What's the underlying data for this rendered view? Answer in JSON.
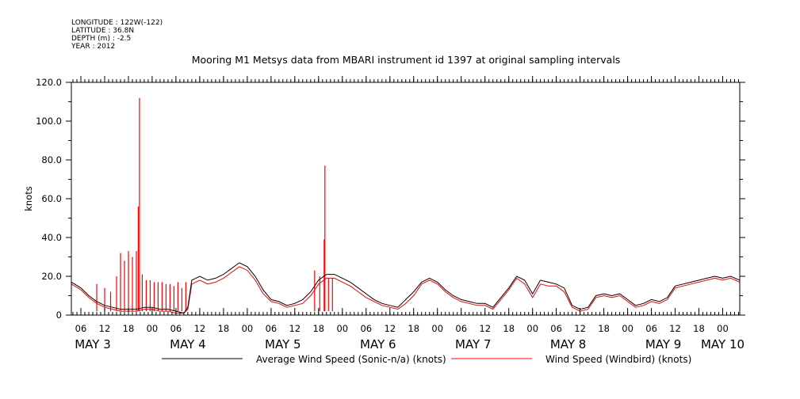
{
  "header": {
    "longitude": "LONGITUDE : 122W(-122)",
    "latitude": "LATITUDE : 36.8N",
    "depth": "DEPTH (m) : -2.5",
    "year": "YEAR : 2012"
  },
  "chart_data": {
    "type": "line",
    "title": "Mooring M1 Metsys data from MBARI instrument id 1397 at original sampling intervals",
    "xlabel": "",
    "ylabel": "knots",
    "ylim": [
      0,
      120
    ],
    "y_ticks": [
      0,
      20,
      40,
      60,
      80,
      100,
      120
    ],
    "y_tick_labels": [
      "0",
      "20.0",
      "40.0",
      "60.0",
      "80.0",
      "100.0",
      "120.0"
    ],
    "x_unit": "hours since 2012-05-03 00:00",
    "xlim": [
      3.6,
      172.3
    ],
    "x_ticks": [
      {
        "hour": 6,
        "label": "06"
      },
      {
        "hour": 12,
        "label": "12"
      },
      {
        "hour": 18,
        "label": "18"
      },
      {
        "hour": 24,
        "label": "00"
      },
      {
        "hour": 30,
        "label": "06"
      },
      {
        "hour": 36,
        "label": "12"
      },
      {
        "hour": 42,
        "label": "18"
      },
      {
        "hour": 48,
        "label": "00"
      },
      {
        "hour": 54,
        "label": "06"
      },
      {
        "hour": 60,
        "label": "12"
      },
      {
        "hour": 66,
        "label": "18"
      },
      {
        "hour": 72,
        "label": "00"
      },
      {
        "hour": 78,
        "label": "06"
      },
      {
        "hour": 84,
        "label": "12"
      },
      {
        "hour": 90,
        "label": "18"
      },
      {
        "hour": 96,
        "label": "00"
      },
      {
        "hour": 102,
        "label": "06"
      },
      {
        "hour": 108,
        "label": "12"
      },
      {
        "hour": 114,
        "label": "18"
      },
      {
        "hour": 120,
        "label": "00"
      },
      {
        "hour": 126,
        "label": "06"
      },
      {
        "hour": 132,
        "label": "12"
      },
      {
        "hour": 138,
        "label": "18"
      },
      {
        "hour": 144,
        "label": "00"
      },
      {
        "hour": 150,
        "label": "06"
      },
      {
        "hour": 156,
        "label": "12"
      },
      {
        "hour": 162,
        "label": "18"
      },
      {
        "hour": 168,
        "label": "00"
      }
    ],
    "day_labels": [
      {
        "hour": 9,
        "label": "MAY  3"
      },
      {
        "hour": 33,
        "label": "MAY  4"
      },
      {
        "hour": 57,
        "label": "MAY  5"
      },
      {
        "hour": 81,
        "label": "MAY  6"
      },
      {
        "hour": 105,
        "label": "MAY  7"
      },
      {
        "hour": 129,
        "label": "MAY  8"
      },
      {
        "hour": 153,
        "label": "MAY  9"
      },
      {
        "hour": 168,
        "label": "MAY 10"
      }
    ],
    "series": [
      {
        "name": "Average Wind Speed (Sonic-n/a) (knots)",
        "color": "#000000",
        "x": [
          3.6,
          6,
          8,
          10,
          12,
          14,
          16,
          18,
          20,
          22,
          24,
          26,
          28,
          30,
          32,
          33,
          34,
          36,
          38,
          40,
          42,
          44,
          46,
          48,
          50,
          52,
          54,
          56,
          58,
          60,
          62,
          64,
          66,
          68,
          70,
          72,
          74,
          76,
          78,
          80,
          82,
          84,
          86,
          88,
          90,
          92,
          94,
          96,
          98,
          100,
          102,
          104,
          106,
          108,
          110,
          112,
          114,
          116,
          118,
          120,
          122,
          124,
          126,
          128,
          130,
          132,
          134,
          136,
          138,
          140,
          142,
          144,
          146,
          148,
          150,
          152,
          154,
          156,
          158,
          160,
          162,
          164,
          166,
          168,
          170,
          172.3
        ],
        "y": [
          17,
          14,
          10,
          7,
          5,
          4,
          3,
          3,
          3,
          4,
          4,
          3,
          3,
          2,
          1,
          4,
          18,
          20,
          18,
          19,
          21,
          24,
          27,
          25,
          20,
          13,
          8,
          7,
          5,
          6,
          8,
          12,
          18,
          21,
          21,
          19,
          17,
          14,
          11,
          8,
          6,
          5,
          4,
          8,
          12,
          17,
          19,
          17,
          13,
          10,
          8,
          7,
          6,
          6,
          4,
          9,
          14,
          20,
          18,
          11,
          18,
          17,
          16,
          14,
          5,
          3,
          4,
          10,
          11,
          10,
          11,
          8,
          5,
          6,
          8,
          7,
          9,
          15,
          16,
          17,
          18,
          19,
          20,
          19,
          20,
          18
        ]
      },
      {
        "name": "Wind Speed (Windbird) (knots)",
        "color": "#ff0000",
        "x": [
          3.6,
          6,
          8,
          10,
          12,
          14,
          16,
          18,
          20,
          22,
          24,
          26,
          28,
          30,
          32,
          33,
          34,
          36,
          38,
          40,
          42,
          44,
          46,
          48,
          50,
          52,
          54,
          56,
          58,
          60,
          62,
          64,
          66,
          68,
          70,
          72,
          74,
          76,
          78,
          80,
          82,
          84,
          86,
          88,
          90,
          92,
          94,
          96,
          98,
          100,
          102,
          104,
          106,
          108,
          110,
          112,
          114,
          116,
          118,
          120,
          122,
          124,
          126,
          128,
          130,
          132,
          134,
          136,
          138,
          140,
          142,
          144,
          146,
          148,
          150,
          152,
          154,
          156,
          158,
          160,
          162,
          164,
          166,
          168,
          170,
          172.3
        ],
        "y": [
          16,
          13,
          9,
          6,
          4,
          3,
          2,
          2,
          2,
          3,
          3,
          2,
          2,
          1,
          1,
          3,
          16,
          18,
          16,
          17,
          19,
          22,
          25,
          23,
          18,
          11,
          7,
          6,
          4,
          5,
          6,
          10,
          16,
          19,
          19,
          17,
          15,
          12,
          9,
          7,
          5,
          4,
          3,
          6,
          10,
          16,
          18,
          16,
          12,
          9,
          7,
          6,
          5,
          5,
          3,
          8,
          13,
          19,
          16,
          9,
          16,
          15,
          15,
          12,
          4,
          2,
          3,
          9,
          10,
          9,
          10,
          7,
          4,
          5,
          7,
          6,
          8,
          14,
          15,
          16,
          17,
          18,
          19,
          18,
          19,
          17
        ],
        "spikes": [
          {
            "x": 10,
            "y": 16
          },
          {
            "x": 12,
            "y": 14
          },
          {
            "x": 13.5,
            "y": 12
          },
          {
            "x": 15,
            "y": 20
          },
          {
            "x": 16,
            "y": 32
          },
          {
            "x": 17,
            "y": 28
          },
          {
            "x": 18,
            "y": 33
          },
          {
            "x": 19,
            "y": 30
          },
          {
            "x": 20,
            "y": 33
          },
          {
            "x": 20.5,
            "y": 56
          },
          {
            "x": 20.8,
            "y": 112
          },
          {
            "x": 21.5,
            "y": 21
          },
          {
            "x": 22.5,
            "y": 18
          },
          {
            "x": 23.5,
            "y": 18
          },
          {
            "x": 24.5,
            "y": 17
          },
          {
            "x": 25.5,
            "y": 17
          },
          {
            "x": 26.5,
            "y": 17
          },
          {
            "x": 27.5,
            "y": 16
          },
          {
            "x": 28.5,
            "y": 16
          },
          {
            "x": 29.5,
            "y": 15
          },
          {
            "x": 30.5,
            "y": 17
          },
          {
            "x": 31.5,
            "y": 14
          },
          {
            "x": 32.5,
            "y": 17
          },
          {
            "x": 65,
            "y": 23
          },
          {
            "x": 66.3,
            "y": 20
          },
          {
            "x": 67.4,
            "y": 39
          },
          {
            "x": 67.6,
            "y": 77
          },
          {
            "x": 68.5,
            "y": 19
          },
          {
            "x": 69.5,
            "y": 19
          }
        ]
      }
    ],
    "grid": false,
    "legend": "bottom"
  }
}
